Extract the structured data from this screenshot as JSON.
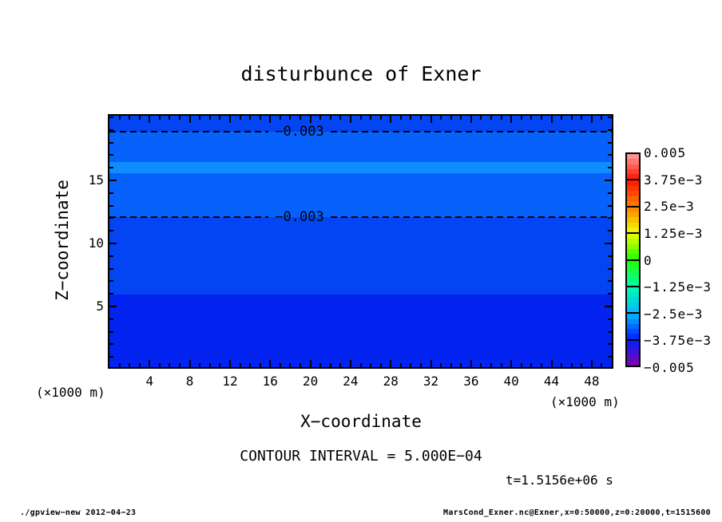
{
  "title": "disturbunce of Exner",
  "annotations": {
    "contour_interval": "CONTOUR INTERVAL = 5.000E−04",
    "time": "t=1.5156e+06 s"
  },
  "footer": {
    "left": "./gpview−new  2012−04−23",
    "right": "MarsCond_Exner.nc@Exner,x=0:50000,z=0:20000,t=1515600"
  },
  "chart_data": {
    "type": "heatmap",
    "title": "disturbunce of Exner",
    "xlabel": "X−coordinate",
    "ylabel": "Z−coordinate",
    "x_unit": "(×1000 m)",
    "y_unit": "(×1000 m)",
    "xlim": [
      0,
      50
    ],
    "ylim": [
      0.19,
      20.12
    ],
    "grid": false,
    "xaxis": {
      "major_ticks": [
        4,
        8,
        12,
        16,
        20,
        24,
        28,
        32,
        36,
        40,
        44,
        48
      ],
      "minor_step": 1
    },
    "yaxis": {
      "major_ticks": [
        5,
        10,
        15
      ],
      "minor_step": 1
    },
    "bands": [
      {
        "z_top": 20.12,
        "z_bottom": 18.88,
        "color": "#0345f2"
      },
      {
        "z_top": 18.88,
        "z_bottom": 16.43,
        "color": "#0762fc"
      },
      {
        "z_top": 16.43,
        "z_bottom": 15.59,
        "color": "#0f8dfe"
      },
      {
        "z_top": 15.59,
        "z_bottom": 12.06,
        "color": "#0762fc"
      },
      {
        "z_top": 12.06,
        "z_bottom": 5.94,
        "color": "#0345f2"
      },
      {
        "z_top": 5.94,
        "z_bottom": 0.19,
        "color": "#0223f0"
      }
    ],
    "contour_lines": [
      {
        "z": 18.88,
        "value": -0.003,
        "label": "−0.003",
        "style": "dashed"
      },
      {
        "z": 12.06,
        "value": -0.003,
        "label": "−0.003",
        "style": "dashed"
      }
    ],
    "contour_interval": 0.0005,
    "colorbar": {
      "position": "right",
      "steps_per_box": 5,
      "stops": [
        {
          "label": "0.005",
          "color": "#ffa2a2"
        },
        {
          "label": "3.75e−3",
          "color": "#ff1400"
        },
        {
          "label": "2.5e−3",
          "color": "#ff8000"
        },
        {
          "label": "1.25e−3",
          "color": "#f0ff00"
        },
        {
          "label": "0",
          "color": "#22ff00"
        },
        {
          "label": "−1.25e−3",
          "color": "#00ffaa"
        },
        {
          "label": "−2.5e−3",
          "color": "#00b7ff"
        },
        {
          "label": "−3.75e−3",
          "color": "#0020ff"
        },
        {
          "label": "−0.005",
          "color": "#8800aa"
        }
      ]
    }
  }
}
